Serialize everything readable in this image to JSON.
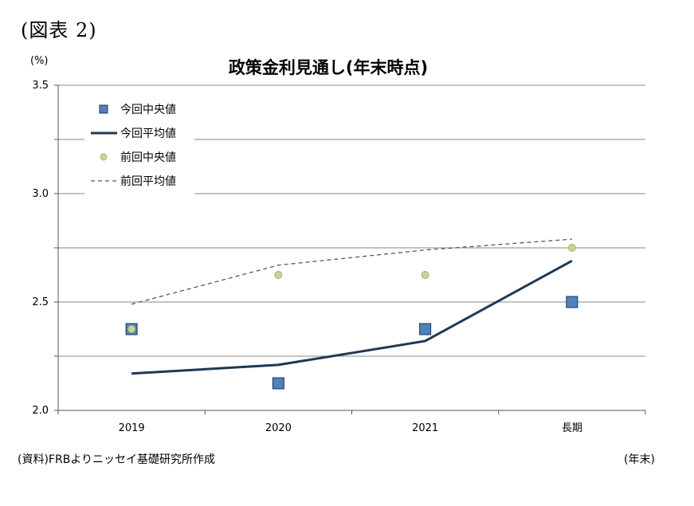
{
  "figure_label": "(図表 2)",
  "source_note": "(資料)FRBよりニッセイ基礎研究所作成",
  "x_unit_note": "(年末)",
  "chart_data": {
    "type": "line",
    "title": "政策金利見通し(年末時点)",
    "y_unit": "(%)",
    "categories": [
      "2019",
      "2020",
      "2021",
      "長期"
    ],
    "ylim": [
      2.0,
      3.5
    ],
    "y_ticks": [
      "2.0",
      "2.5",
      "3.0",
      "3.5"
    ],
    "grid": true,
    "legend_position": "top-left",
    "series": [
      {
        "name": "今回中央値",
        "style": "square-marker",
        "color": "#4f81bd",
        "values": [
          2.375,
          2.125,
          2.375,
          2.5
        ]
      },
      {
        "name": "今回平均値",
        "style": "solid-line",
        "color": "#1f3855",
        "values": [
          2.17,
          2.21,
          2.32,
          2.69
        ]
      },
      {
        "name": "前回中央値",
        "style": "circle-marker",
        "color": "#c3d69b",
        "values": [
          2.375,
          2.625,
          2.625,
          2.75
        ]
      },
      {
        "name": "前回平均値",
        "style": "dashed-line",
        "color": "#5a5a3c",
        "values": [
          2.49,
          2.67,
          2.74,
          2.79
        ]
      }
    ]
  }
}
